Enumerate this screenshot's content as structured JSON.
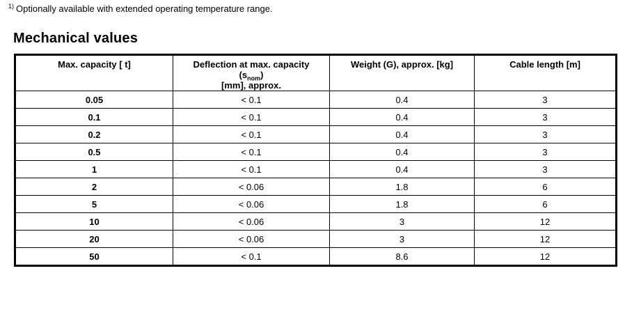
{
  "footnote": {
    "marker": "1)",
    "text": "Optionally available with extended operating temperature range."
  },
  "heading": "Mechanical values",
  "table": {
    "columns": [
      {
        "id": "capacity",
        "label": "Max. capacity [ t]"
      },
      {
        "id": "deflection",
        "label_line1": "Deflection at max. capacity",
        "label_sub_pre": "(s",
        "label_sub": "nom",
        "label_sub_post": ")",
        "label_line3": "[mm], approx."
      },
      {
        "id": "weight",
        "label": "Weight (G), approx. [kg]"
      },
      {
        "id": "cable",
        "label": "Cable length [m]"
      }
    ],
    "rows": [
      [
        "0.05",
        "< 0.1",
        "0.4",
        "3"
      ],
      [
        "0.1",
        "< 0.1",
        "0.4",
        "3"
      ],
      [
        "0.2",
        "< 0.1",
        "0.4",
        "3"
      ],
      [
        "0.5",
        "< 0.1",
        "0.4",
        "3"
      ],
      [
        "1",
        "< 0.1",
        "0.4",
        "3"
      ],
      [
        "2",
        "< 0.06",
        "1.8",
        "6"
      ],
      [
        "5",
        "< 0.06",
        "1.8",
        "6"
      ],
      [
        "10",
        "< 0.06",
        "3",
        "12"
      ],
      [
        "20",
        "< 0.06",
        "3",
        "12"
      ],
      [
        "50",
        "< 0.1",
        "8.6",
        "12"
      ]
    ]
  },
  "colors": {
    "text": "#000000",
    "border": "#000000",
    "background": "#ffffff"
  }
}
